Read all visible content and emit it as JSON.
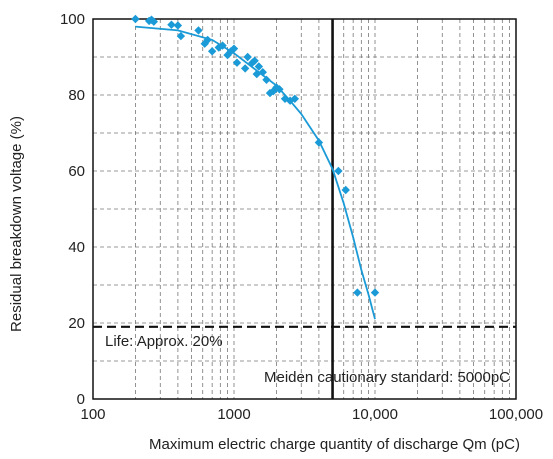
{
  "chart_data": {
    "type": "scatter",
    "xlabel": "Maximum electric charge quantity of discharge Qm (pC)",
    "ylabel": "Residual breakdown voltage (%)",
    "x_scale": "log",
    "xlim": [
      100,
      100000
    ],
    "ylim": [
      0,
      100
    ],
    "x_ticks": [
      100,
      1000,
      10000,
      100000
    ],
    "x_tick_labels": [
      "100",
      "1000",
      "10,000",
      "100,000"
    ],
    "y_ticks": [
      0,
      20,
      40,
      60,
      80,
      100
    ],
    "y_tick_labels": [
      "0",
      "20",
      "40",
      "60",
      "80",
      "100"
    ],
    "grid": true,
    "series": [
      {
        "kind": "points",
        "marker": "diamond",
        "color": "#1a9ad6",
        "x": [
          200,
          250,
          260,
          270,
          360,
          400,
          420,
          560,
          620,
          650,
          700,
          780,
          830,
          900,
          950,
          1000,
          1050,
          1200,
          1250,
          1350,
          1400,
          1450,
          1500,
          1600,
          1700,
          1800,
          1900,
          2000,
          2100,
          2300,
          2500,
          2700,
          4000,
          5500,
          6200,
          7500,
          10000
        ],
        "y": [
          100,
          99.5,
          99.8,
          99.3,
          98.5,
          98.3,
          95.5,
          97,
          93.5,
          94.5,
          91.5,
          92.5,
          93,
          90.5,
          91.5,
          92.2,
          88.5,
          87,
          90,
          88.5,
          89,
          85.5,
          87.5,
          86,
          84,
          80.5,
          81,
          82,
          81.5,
          79,
          78.5,
          79,
          67.5,
          60,
          55,
          28,
          28
        ]
      },
      {
        "kind": "curve",
        "color": "#1a9ad6",
        "x": [
          200,
          400,
          700,
          1000,
          1500,
          2000,
          2500,
          3000,
          4000,
          5000,
          6000,
          7000,
          8000,
          9000,
          10000
        ],
        "y": [
          98,
          97,
          94.5,
          91,
          86,
          82.5,
          78.5,
          75,
          68,
          60.5,
          51.5,
          42.5,
          34,
          27.5,
          21
        ]
      }
    ],
    "reference_lines": [
      {
        "orientation": "horizontal",
        "value": 19,
        "style": "dashed",
        "color": "#111111"
      },
      {
        "orientation": "vertical",
        "value": 5000,
        "style": "solid",
        "color": "#111111"
      }
    ],
    "annotations": [
      {
        "text": "Life: Approx. 20%",
        "position": "left-below-horizontal-line"
      },
      {
        "text": "Meiden cautionary standard: 5000pC",
        "position": "bottom-right"
      }
    ]
  }
}
